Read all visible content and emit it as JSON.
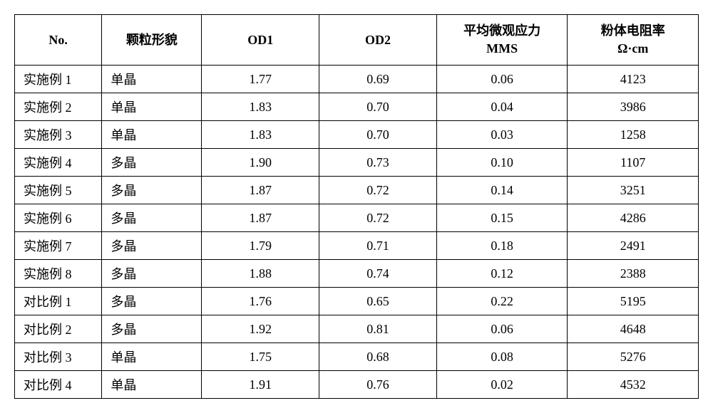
{
  "table": {
    "columns": [
      {
        "key": "no",
        "header": "No.",
        "class": "col-no"
      },
      {
        "key": "morph",
        "header": "颗粒形貌",
        "class": "col-morph"
      },
      {
        "key": "od1",
        "header": "OD1",
        "class": "col-od1"
      },
      {
        "key": "od2",
        "header": "OD2",
        "class": "col-od2"
      },
      {
        "key": "mms",
        "header": "平均微观应力\nMMS",
        "class": "col-mms"
      },
      {
        "key": "res",
        "header": "粉体电阻率\nΩ·cm",
        "class": "col-res"
      }
    ],
    "rows": [
      {
        "no": "实施例 1",
        "morph": "单晶",
        "od1": "1.77",
        "od2": "0.69",
        "mms": "0.06",
        "res": "4123"
      },
      {
        "no": "实施例 2",
        "morph": "单晶",
        "od1": "1.83",
        "od2": "0.70",
        "mms": "0.04",
        "res": "3986"
      },
      {
        "no": "实施例 3",
        "morph": "单晶",
        "od1": "1.83",
        "od2": "0.70",
        "mms": "0.03",
        "res": "1258"
      },
      {
        "no": "实施例 4",
        "morph": "多晶",
        "od1": "1.90",
        "od2": "0.73",
        "mms": "0.10",
        "res": "1107"
      },
      {
        "no": "实施例 5",
        "morph": "多晶",
        "od1": "1.87",
        "od2": "0.72",
        "mms": "0.14",
        "res": "3251"
      },
      {
        "no": "实施例 6",
        "morph": "多晶",
        "od1": "1.87",
        "od2": "0.72",
        "mms": "0.15",
        "res": "4286"
      },
      {
        "no": "实施例 7",
        "morph": "多晶",
        "od1": "1.79",
        "od2": "0.71",
        "mms": "0.18",
        "res": "2491"
      },
      {
        "no": "实施例 8",
        "morph": "多晶",
        "od1": "1.88",
        "od2": "0.74",
        "mms": "0.12",
        "res": "2388"
      },
      {
        "no": "对比例 1",
        "morph": "多晶",
        "od1": "1.76",
        "od2": "0.65",
        "mms": "0.22",
        "res": "5195"
      },
      {
        "no": "对比例 2",
        "morph": "多晶",
        "od1": "1.92",
        "od2": "0.81",
        "mms": "0.06",
        "res": "4648"
      },
      {
        "no": "对比例 3",
        "morph": "单晶",
        "od1": "1.75",
        "od2": "0.68",
        "mms": "0.08",
        "res": "5276"
      },
      {
        "no": "对比例 4",
        "morph": "单晶",
        "od1": "1.91",
        "od2": "0.76",
        "mms": "0.02",
        "res": "4532"
      }
    ],
    "styling": {
      "border_color": "#000000",
      "border_width": 1.5,
      "background_color": "#ffffff",
      "header_fontsize": 18,
      "cell_fontsize": 18,
      "header_fontweight": "bold",
      "font_family": "SimSun",
      "text_align_header": "center",
      "text_align_left_cols": [
        "no",
        "morph"
      ],
      "text_align_center_cols": [
        "od1",
        "od2",
        "mms",
        "res"
      ]
    }
  }
}
